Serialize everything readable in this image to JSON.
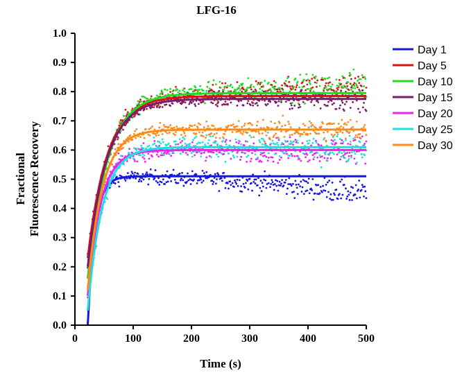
{
  "chart_data": {
    "type": "scatter",
    "title": "LFG-16",
    "xlabel": "Time (s)",
    "ylabel_lines": [
      "Fractional",
      "Fluorescence Recovery"
    ],
    "xlim": [
      0,
      500
    ],
    "ylim": [
      0.0,
      1.0
    ],
    "x_ticks": [
      "0",
      "100",
      "200",
      "300",
      "400",
      "500"
    ],
    "y_ticks": [
      "0.0",
      "0.1",
      "0.2",
      "0.3",
      "0.4",
      "0.5",
      "0.6",
      "0.7",
      "0.8",
      "0.9",
      "1.0"
    ],
    "grid": false,
    "legend_position": "right",
    "series": [
      {
        "name": "Day 1",
        "color": "#1515e6",
        "plateau": 0.51,
        "start": 0.0,
        "k": 0.08,
        "noise": 0.03,
        "drift": -0.06
      },
      {
        "name": "Day 5",
        "color": "#dd1111",
        "plateau": 0.785,
        "start": 0.23,
        "k": 0.03,
        "noise": 0.035,
        "drift": 0.03
      },
      {
        "name": "Day 10",
        "color": "#1fdc1f",
        "plateau": 0.795,
        "start": 0.16,
        "k": 0.03,
        "noise": 0.035,
        "drift": 0.03
      },
      {
        "name": "Day 15",
        "color": "#7a1a6e",
        "plateau": 0.775,
        "start": 0.2,
        "k": 0.031,
        "noise": 0.03,
        "drift": 0.0
      },
      {
        "name": "Day 20",
        "color": "#ee22ee",
        "plateau": 0.6,
        "start": 0.1,
        "k": 0.045,
        "noise": 0.035,
        "drift": 0.0
      },
      {
        "name": "Day 25",
        "color": "#22dddd",
        "plateau": 0.61,
        "start": 0.05,
        "k": 0.04,
        "noise": 0.04,
        "drift": 0.0
      },
      {
        "name": "Day 30",
        "color": "#ff8a1a",
        "plateau": 0.67,
        "start": 0.12,
        "k": 0.04,
        "noise": 0.03,
        "drift": 0.0
      }
    ]
  }
}
